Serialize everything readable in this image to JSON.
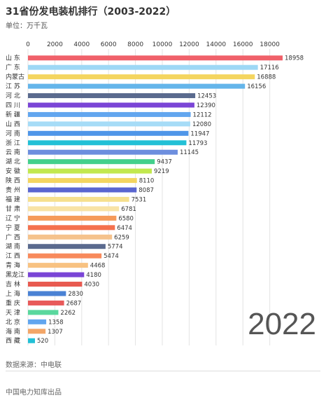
{
  "title": "31省份发电装机排行（2003-2022）",
  "unit": "单位：万千瓦",
  "year": "2022",
  "source": "数据来源：中电联",
  "footer": "中国电力知库出品",
  "chart_data": {
    "type": "bar",
    "orientation": "horizontal",
    "xlim": [
      0,
      18958
    ],
    "xticks": [
      0,
      2000,
      4000,
      6000,
      8000,
      10000,
      12000,
      14000,
      16000,
      18000
    ],
    "grid": true,
    "categories": [
      "山 东",
      "广 东",
      "内蒙古",
      "江 苏",
      "河 北",
      "四 川",
      "新 疆",
      "山 西",
      "河 南",
      "浙 江",
      "云 南",
      "湖 北",
      "安 徽",
      "陕 西",
      "贵 州",
      "福 建",
      "甘 肃",
      "辽 宁",
      "宁 夏",
      "广 西",
      "湖 南",
      "江 西",
      "青 海",
      "黑龙江",
      "吉 林",
      "上 海",
      "重 庆",
      "天 津",
      "北 京",
      "海 南",
      "西 藏"
    ],
    "values": [
      18958,
      17116,
      16888,
      16156,
      12453,
      12390,
      12112,
      12080,
      11947,
      11793,
      11145,
      9437,
      9219,
      8110,
      8087,
      7531,
      6781,
      6580,
      6474,
      6259,
      5774,
      5474,
      4468,
      4180,
      4030,
      2830,
      2687,
      2262,
      1358,
      1307,
      520
    ],
    "colors": [
      "#f0616a",
      "#9ed8f5",
      "#f4d560",
      "#64b5ea",
      "#5a6a8e",
      "#7a45d6",
      "#62a6ef",
      "#a6dcf7",
      "#4f96e8",
      "#22c0d6",
      "#6d8ede",
      "#43d08c",
      "#c2e84e",
      "#f4d560",
      "#5a66d0",
      "#f6e08e",
      "#f8e3a6",
      "#f59a5a",
      "#f4714e",
      "#f5c28c",
      "#5a6a8e",
      "#f88a5c",
      "#f8c282",
      "#7a45d6",
      "#e85a50",
      "#4a82d4",
      "#e85a5a",
      "#5ad89e",
      "#62a6ef",
      "#f3a668",
      "#22c0d6"
    ]
  }
}
